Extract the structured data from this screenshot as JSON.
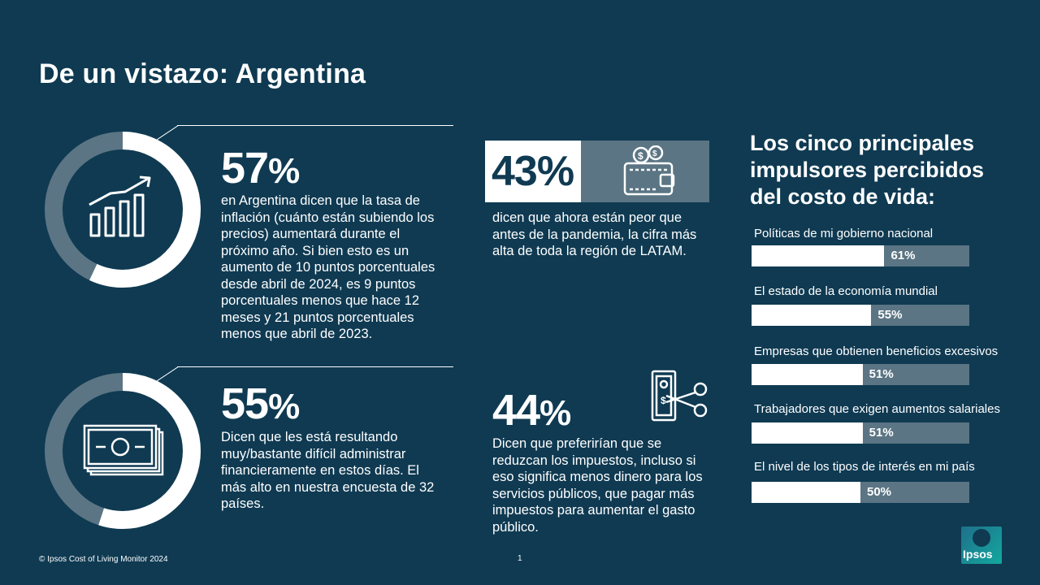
{
  "title": "De un vistazo: Argentina",
  "stat1": {
    "value": "57",
    "unit": "%",
    "percent": 57,
    "text": "en Argentina dicen que la tasa de inflación (cuánto están subiendo los precios) aumentará durante el próximo año. Si bien esto es un aumento de 10 puntos porcentuales desde abril de 2024, es 9 puntos porcentuales menos que hace 12 meses y 21 puntos porcentuales menos que abril de 2023.",
    "icon": "growth-chart-icon"
  },
  "stat2": {
    "value": "55",
    "unit": "%",
    "percent": 55,
    "text": "Dicen que les está resultando muy/bastante difícil administrar financieramente en estos días. El más alto en nuestra encuesta de 32 países.",
    "icon": "banknotes-icon"
  },
  "stat3": {
    "value": "43%",
    "text": "dicen que ahora están peor que antes de la pandemia, la cifra más alta de toda la región de LATAM.",
    "icon": "wallet-icon"
  },
  "stat4": {
    "value": "44",
    "unit": "%",
    "text": "Dicen que preferirían que se reduzcan los impuestos, incluso si eso significa menos dinero para los servicios públicos, que pagar más impuestos para aumentar el gasto público.",
    "icon": "cut-money-icon"
  },
  "drivers": {
    "title": "Los cinco principales impulsores percibidos del costo de vida:",
    "items": [
      {
        "label": "Políticas de mi gobierno nacional",
        "value": 61,
        "display": "61%"
      },
      {
        "label": "El estado de la economía mundial",
        "value": 55,
        "display": "55%"
      },
      {
        "label": "Empresas que obtienen beneficios excesivos",
        "value": 51,
        "display": "51%"
      },
      {
        "label": "Trabajadores que exigen aumentos salariales",
        "value": 51,
        "display": "51%"
      },
      {
        "label": "El nivel de los tipos de interés en mi país",
        "value": 50,
        "display": "50%"
      }
    ]
  },
  "footer": "© Ipsos Cost of Living Monitor 2024",
  "page_number": "1",
  "logo_text": "Ipsos",
  "colors": {
    "background": "#0f3a52",
    "muted": "#5b7584",
    "foreground": "#ffffff"
  }
}
